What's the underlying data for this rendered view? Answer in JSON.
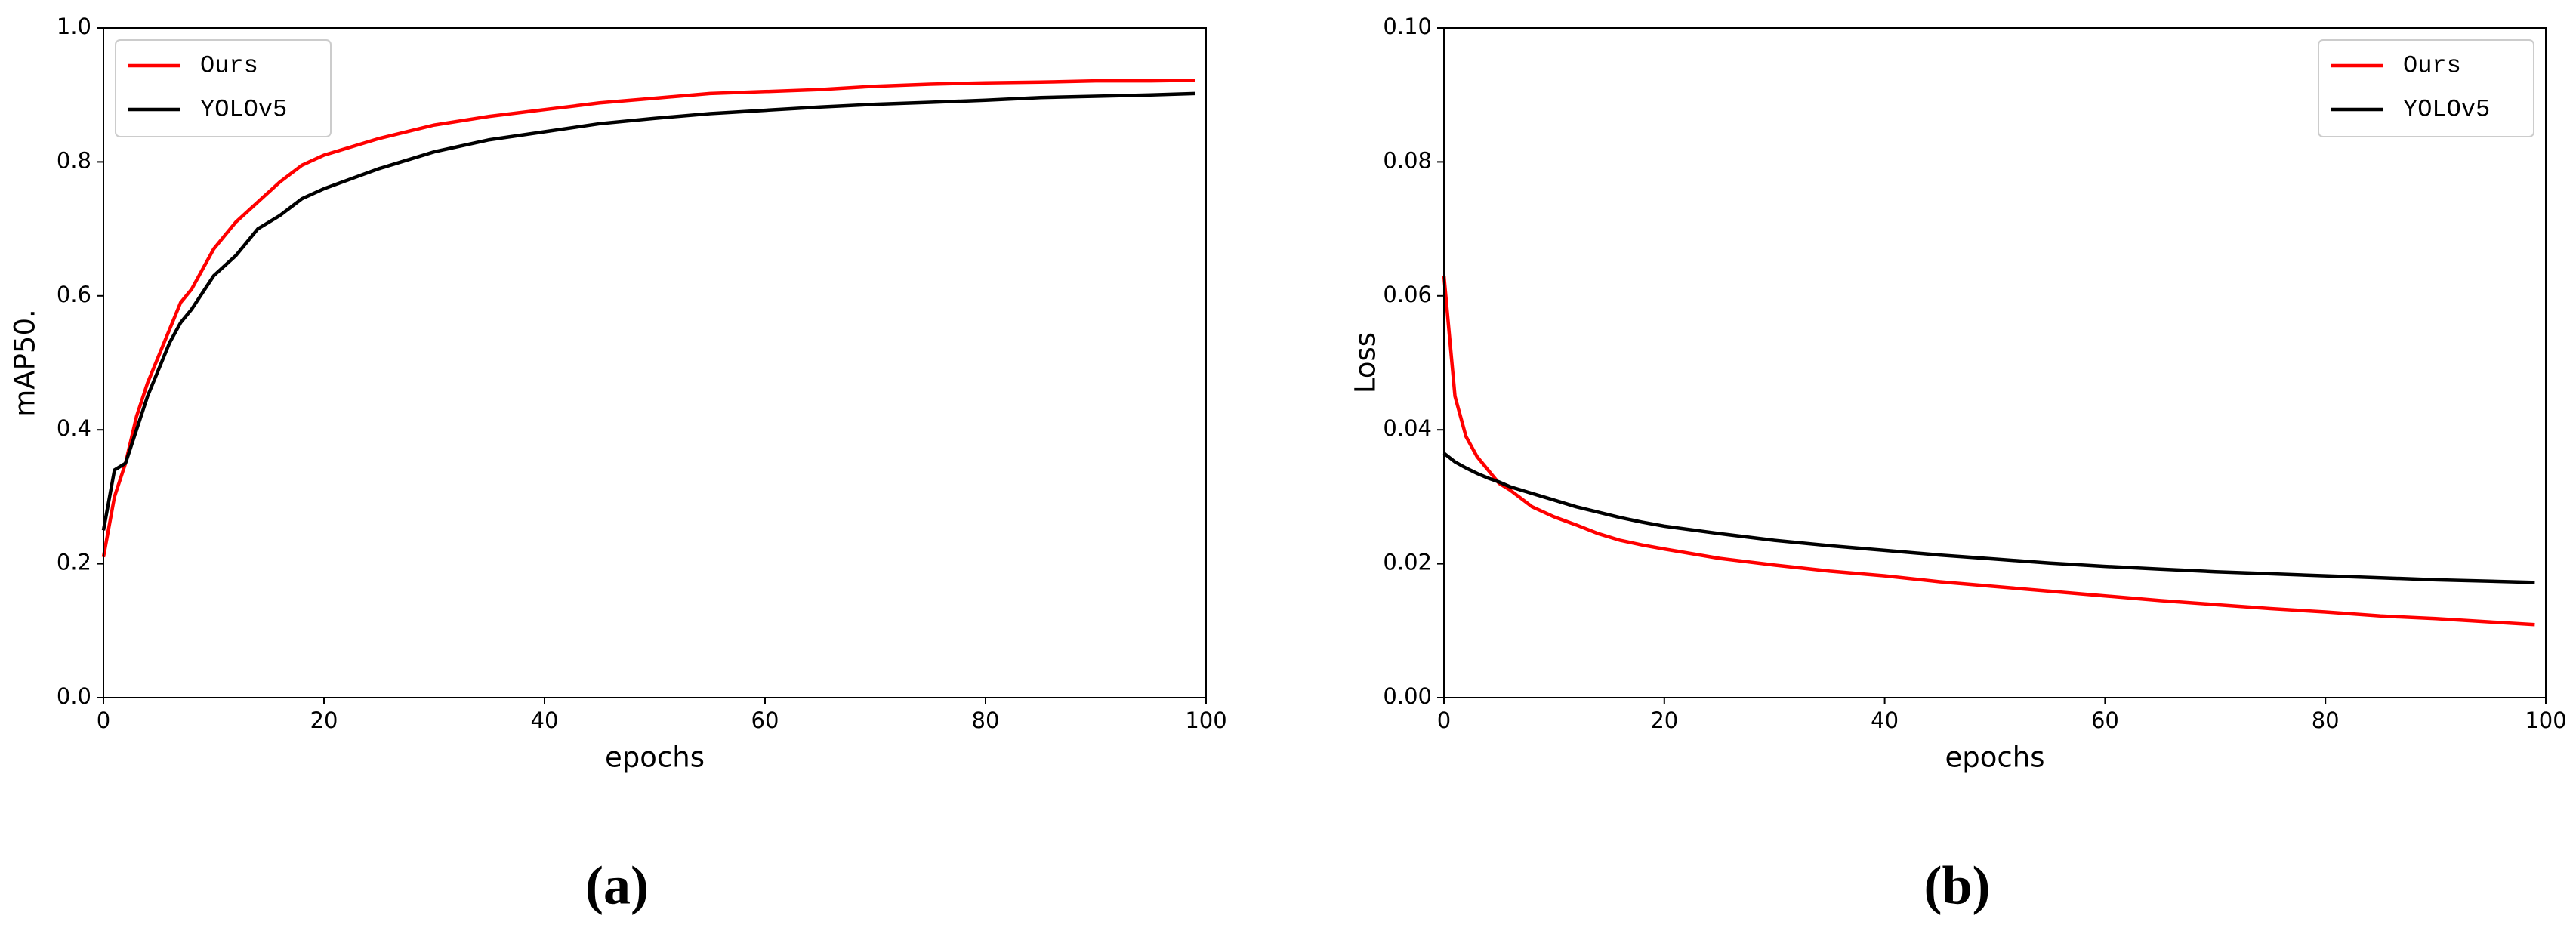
{
  "chart_data": [
    {
      "type": "line",
      "caption": "(a)",
      "xlabel": "epochs",
      "ylabel": "mAP50.",
      "x": [
        0,
        1,
        2,
        3,
        4,
        5,
        6,
        7,
        8,
        10,
        12,
        14,
        16,
        18,
        20,
        25,
        30,
        35,
        40,
        45,
        50,
        55,
        60,
        65,
        70,
        75,
        80,
        85,
        90,
        95,
        99
      ],
      "series": [
        {
          "name": "Ours",
          "color": "#ff0000",
          "values": [
            0.21,
            0.3,
            0.35,
            0.42,
            0.47,
            0.51,
            0.55,
            0.59,
            0.61,
            0.67,
            0.71,
            0.74,
            0.77,
            0.795,
            0.81,
            0.835,
            0.855,
            0.868,
            0.878,
            0.888,
            0.895,
            0.902,
            0.905,
            0.908,
            0.913,
            0.916,
            0.918,
            0.919,
            0.921,
            0.921,
            0.922
          ]
        },
        {
          "name": "YOLOv5",
          "color": "#000000",
          "values": [
            0.25,
            0.34,
            0.35,
            0.4,
            0.45,
            0.49,
            0.53,
            0.56,
            0.58,
            0.63,
            0.66,
            0.7,
            0.72,
            0.745,
            0.76,
            0.79,
            0.815,
            0.833,
            0.845,
            0.857,
            0.865,
            0.872,
            0.877,
            0.882,
            0.886,
            0.889,
            0.892,
            0.896,
            0.898,
            0.9,
            0.902
          ]
        }
      ],
      "xlim": [
        0,
        100
      ],
      "xticks": [
        0,
        20,
        40,
        60,
        80,
        100
      ],
      "ylim": [
        0,
        1
      ],
      "yticks": [
        {
          "value": 0,
          "label": "0.0"
        },
        0.2,
        0.4,
        0.6,
        0.8,
        {
          "value": 1,
          "label": "1.0"
        }
      ],
      "legend": "upper left"
    },
    {
      "type": "line",
      "caption": "(b)",
      "xlabel": "epochs",
      "ylabel": "Loss",
      "x": [
        0,
        1,
        2,
        3,
        4,
        5,
        6,
        8,
        10,
        12,
        14,
        16,
        18,
        20,
        25,
        30,
        35,
        40,
        45,
        50,
        55,
        60,
        65,
        70,
        75,
        80,
        85,
        90,
        95,
        99
      ],
      "series": [
        {
          "name": "Ours",
          "color": "#ff0000",
          "values": [
            0.063,
            0.045,
            0.039,
            0.036,
            0.034,
            0.032,
            0.031,
            0.0285,
            0.027,
            0.0258,
            0.0245,
            0.0235,
            0.0228,
            0.0222,
            0.0208,
            0.0198,
            0.0189,
            0.0182,
            0.0173,
            0.0166,
            0.0159,
            0.0152,
            0.0145,
            0.0139,
            0.0133,
            0.0128,
            0.0122,
            0.0118,
            0.0113,
            0.0109
          ]
        },
        {
          "name": "YOLOv5",
          "color": "#000000",
          "values": [
            0.0365,
            0.0352,
            0.0343,
            0.0335,
            0.0328,
            0.0322,
            0.0315,
            0.0305,
            0.0295,
            0.0285,
            0.0277,
            0.0269,
            0.0262,
            0.0256,
            0.0245,
            0.0235,
            0.0227,
            0.022,
            0.0213,
            0.0207,
            0.0201,
            0.0196,
            0.0192,
            0.0188,
            0.0185,
            0.0182,
            0.0179,
            0.0176,
            0.0174,
            0.0172
          ]
        }
      ],
      "xlim": [
        0,
        100
      ],
      "xticks": [
        0,
        20,
        40,
        60,
        80,
        100
      ],
      "ylim": [
        0,
        0.1
      ],
      "yticks": [
        {
          "value": 0,
          "label": "0.00"
        },
        0.02,
        0.04,
        0.06,
        0.08,
        {
          "value": 0.1,
          "label": "0.10"
        }
      ],
      "legend": "upper right"
    }
  ]
}
